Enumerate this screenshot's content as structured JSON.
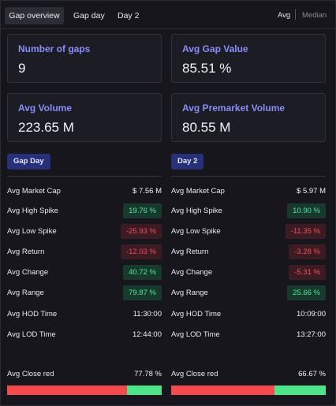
{
  "tabs": {
    "overview": "Gap overview",
    "gap_day": "Gap day",
    "day2": "Day 2"
  },
  "toggle": {
    "avg": "Avg",
    "median": "Median"
  },
  "cards": {
    "gaps": {
      "label": "Number of gaps",
      "value": "9"
    },
    "gap_value": {
      "label": "Avg Gap Value",
      "value": "85.51 %"
    },
    "volume": {
      "label": "Avg Volume",
      "value": "223.65 M"
    },
    "pm_volume": {
      "label": "Avg Premarket Volume",
      "value": "80.55 M"
    }
  },
  "gap_day": {
    "title": "Gap Day",
    "market_cap": {
      "label": "Avg Market Cap",
      "value": "$ 7.56 M"
    },
    "high_spike": {
      "label": "Avg High Spike",
      "value": "19.76 %"
    },
    "low_spike": {
      "label": "Avg Low Spike",
      "value": "-25.93 %"
    },
    "return": {
      "label": "Avg Return",
      "value": "-12.03 %"
    },
    "change": {
      "label": "Avg Change",
      "value": "40.72 %"
    },
    "range": {
      "label": "Avg Range",
      "value": "79.87 %"
    },
    "hod_time": {
      "label": "Avg HOD Time",
      "value": "11:30:00"
    },
    "lod_time": {
      "label": "Avg LOD Time",
      "value": "12:44:00"
    },
    "close_red": {
      "label": "Avg Close red",
      "value": "77.78 %",
      "fraction": 0.7778
    }
  },
  "day2": {
    "title": "Day 2",
    "market_cap": {
      "label": "Avg Market Cap",
      "value": "$ 5.97 M"
    },
    "high_spike": {
      "label": "Avg High Spike",
      "value": "10.90 %"
    },
    "low_spike": {
      "label": "Avg Low Spike",
      "value": "-11.35 %"
    },
    "return": {
      "label": "Avg Return",
      "value": "-3.28 %"
    },
    "change": {
      "label": "Avg Change",
      "value": "-5.31 %"
    },
    "range": {
      "label": "Avg Range",
      "value": "25.66 %"
    },
    "hod_time": {
      "label": "Avg HOD Time",
      "value": "10:09:00"
    },
    "lod_time": {
      "label": "Avg LOD Time",
      "value": "13:27:00"
    },
    "close_red": {
      "label": "Avg Close red",
      "value": "66.67 %",
      "fraction": 0.6667
    }
  },
  "colors": {
    "accent": "#8a8cf6",
    "positive": "#4ee6a0",
    "negative": "#f0505a",
    "bar_red": "#f54a4d",
    "bar_green": "#4ee58a"
  }
}
